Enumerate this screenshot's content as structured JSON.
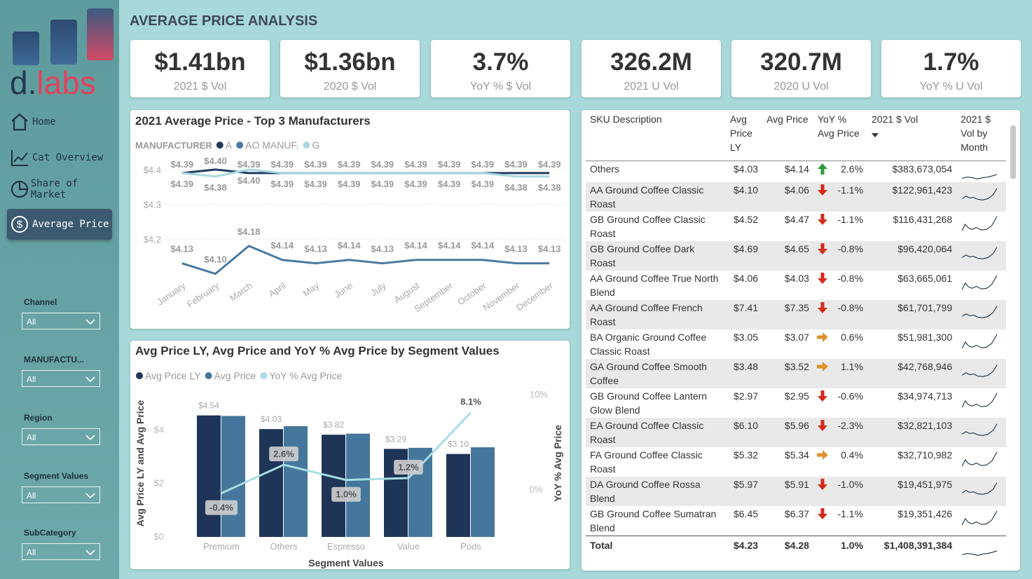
{
  "sidebar": {
    "logo": {
      "prefix": "d.",
      "suffix": "labs"
    },
    "nav": [
      "Home",
      "Cat Overview",
      "Share of Market",
      "Average Price"
    ],
    "active_nav": 3,
    "filters": [
      {
        "label": "Channel",
        "value": "All"
      },
      {
        "label": "MANUFACTU...",
        "value": "All"
      },
      {
        "label": "Region",
        "value": "All"
      },
      {
        "label": "Segment Values",
        "value": "All"
      },
      {
        "label": "SubCategory",
        "value": "All"
      }
    ]
  },
  "page_title": "AVERAGE PRICE ANALYSIS",
  "kpis": [
    {
      "value": "$1.41bn",
      "label": "2021 $ Vol"
    },
    {
      "value": "$1.36bn",
      "label": "2020 $ Vol"
    },
    {
      "value": "3.7%",
      "label": "YoY % $ Vol"
    },
    {
      "value": "326.2M",
      "label": "2021 U Vol"
    },
    {
      "value": "320.7M",
      "label": "2020 U Vol"
    },
    {
      "value": "1.7%",
      "label": "YoY % U Vol"
    }
  ],
  "chart_data": [
    {
      "type": "line",
      "title": "2021 Average Price - Top 3 Manufacturers",
      "legend_title": "MANUFACTURER",
      "categories": [
        "January",
        "February",
        "March",
        "April",
        "May",
        "June",
        "July",
        "August",
        "September",
        "October",
        "November",
        "December"
      ],
      "series": [
        {
          "name": "A",
          "color": "#1f3a5f",
          "label_offset": -8,
          "values": [
            4.39,
            4.4,
            4.39,
            4.39,
            4.39,
            4.39,
            4.39,
            4.39,
            4.39,
            4.39,
            4.39,
            4.39
          ],
          "value_labels": [
            "$4.39",
            "$4.40",
            "$4.39",
            "$4.39",
            "$4.39",
            "$4.39",
            "$4.39",
            "$4.39",
            "$4.39",
            "$4.39",
            "$4.39",
            "$4.39"
          ]
        },
        {
          "name": "AO MANUF.",
          "color": "#4a7aa0",
          "label_offset": -16,
          "values": [
            4.13,
            4.1,
            4.18,
            4.14,
            4.13,
            4.14,
            4.13,
            4.14,
            4.14,
            4.14,
            4.13,
            4.13
          ],
          "value_labels": [
            "$4.13",
            "$4.10",
            "$4.18",
            "$4.14",
            "$4.13",
            "$4.14",
            "$4.13",
            "$4.14",
            "$4.14",
            "$4.14",
            "$4.13",
            "$4.13"
          ]
        },
        {
          "name": "G",
          "color": "#a8d8e0",
          "label_offset": 20,
          "values": [
            4.39,
            4.38,
            4.4,
            4.39,
            4.39,
            4.39,
            4.39,
            4.39,
            4.39,
            4.39,
            4.38,
            4.38
          ],
          "value_labels": [
            "$4.39",
            "$4.38",
            "$4.40",
            "$4.39",
            "$4.39",
            "$4.39",
            "$4.39",
            "$4.39",
            "$4.39",
            "$4.39",
            "$4.38",
            "$4.38"
          ]
        }
      ],
      "ylim": [
        4.09,
        4.43
      ],
      "yticks": [
        {
          "value": 4.2,
          "label": "$4.2"
        },
        {
          "value": 4.3,
          "label": "$4.3"
        },
        {
          "value": 4.4,
          "label": "$4.4"
        }
      ],
      "grid": true
    },
    {
      "type": "combo",
      "title": "Avg Price LY, Avg Price and YoY % Avg Price by Segment Values",
      "categories": [
        "Premium",
        "Others",
        "Espresso",
        "Value",
        "Pods"
      ],
      "series": [
        {
          "name": "Avg Price LY",
          "kind": "bar",
          "color": "#1e3557",
          "values": [
            4.54,
            4.03,
            3.82,
            3.29,
            3.1
          ],
          "value_labels": [
            "$4.54",
            "$4.03",
            "$3.82",
            "$3.29",
            "$3.10"
          ]
        },
        {
          "name": "Avg Price",
          "kind": "bar",
          "color": "#44779b",
          "values": [
            4.52,
            4.14,
            3.86,
            3.33,
            3.35
          ]
        },
        {
          "name": "YoY % Avg Price",
          "kind": "line",
          "axis": "y2",
          "color": "#a8dde3",
          "values": [
            -0.4,
            2.6,
            1.0,
            1.2,
            8.1
          ],
          "value_labels": [
            "-0.4%",
            "2.6%",
            "1.0%",
            "1.2%",
            "8.1%"
          ]
        }
      ],
      "xlabel": "Segment Values",
      "ylabel": "Avg Price LY and Avg Price",
      "y2label": "YoY % Avg Price",
      "ylim": [
        0,
        5.5
      ],
      "yticks": [
        {
          "value": 0,
          "label": "$0"
        },
        {
          "value": 2,
          "label": "$2"
        },
        {
          "value": 4,
          "label": "$4"
        }
      ],
      "y2lim": [
        -5,
        10.5
      ],
      "y2ticks": [
        {
          "value": 0,
          "label": "0%"
        },
        {
          "value": 10,
          "label": "10%"
        }
      ]
    }
  ],
  "table": {
    "columns": [
      "SKU Description",
      "Avg Price LY",
      "Avg Price",
      "YoY % Avg Price",
      "2021 $ Vol",
      "2021 $ Vol by Month"
    ],
    "rows": [
      {
        "sku": "Others",
        "avg_price_ly": "$4.03",
        "avg_price": "$4.14",
        "trend": "up",
        "yoy": "2.6%",
        "vol": "$383,673,054"
      },
      {
        "sku": "AA Ground Coffee Classic Roast",
        "avg_price_ly": "$4.10",
        "avg_price": "$4.06",
        "trend": "down",
        "yoy": "-1.1%",
        "vol": "$122,961,423"
      },
      {
        "sku": "GB Ground Coffee Classic Roast",
        "avg_price_ly": "$4.52",
        "avg_price": "$4.47",
        "trend": "down",
        "yoy": "-1.1%",
        "vol": "$116,431,268"
      },
      {
        "sku": "GB Ground Coffee Dark Roast",
        "avg_price_ly": "$4.69",
        "avg_price": "$4.65",
        "trend": "down",
        "yoy": "-0.8%",
        "vol": "$96,420,064"
      },
      {
        "sku": "AA Ground Coffee True North Blend",
        "avg_price_ly": "$4.06",
        "avg_price": "$4.03",
        "trend": "down",
        "yoy": "-0.8%",
        "vol": "$63,665,061"
      },
      {
        "sku": "AA Ground Coffee French Roast",
        "avg_price_ly": "$7.41",
        "avg_price": "$7.35",
        "trend": "down",
        "yoy": "-0.8%",
        "vol": "$61,701,799"
      },
      {
        "sku": "BA Organic Ground Coffee Classic Roast",
        "avg_price_ly": "$3.05",
        "avg_price": "$3.07",
        "trend": "flat",
        "yoy": "0.6%",
        "vol": "$51,981,300"
      },
      {
        "sku": "GA Ground Coffee Smooth Coffee",
        "avg_price_ly": "$3.48",
        "avg_price": "$3.52",
        "trend": "flat",
        "yoy": "1.1%",
        "vol": "$42,768,946"
      },
      {
        "sku": "GB Ground Coffee Lantern Glow Blend",
        "avg_price_ly": "$2.97",
        "avg_price": "$2.95",
        "trend": "down",
        "yoy": "-0.6%",
        "vol": "$34,974,713"
      },
      {
        "sku": "EA Ground Coffee Classic Roast",
        "avg_price_ly": "$6.10",
        "avg_price": "$5.96",
        "trend": "down",
        "yoy": "-2.3%",
        "vol": "$32,821,103"
      },
      {
        "sku": "FA Ground Coffee Classic Roast",
        "avg_price_ly": "$5.32",
        "avg_price": "$5.34",
        "trend": "flat",
        "yoy": "0.4%",
        "vol": "$32,710,982"
      },
      {
        "sku": "DA Ground Coffee Rossa Blend",
        "avg_price_ly": "$5.97",
        "avg_price": "$5.91",
        "trend": "down",
        "yoy": "-1.0%",
        "vol": "$19,451,975"
      },
      {
        "sku": "GB Ground Coffee Sumatran Blend",
        "avg_price_ly": "$6.45",
        "avg_price": "$6.37",
        "trend": "down",
        "yoy": "-1.1%",
        "vol": "$19,351,426"
      }
    ],
    "total": {
      "sku": "Total",
      "avg_price_ly": "$4.23",
      "avg_price": "$4.28",
      "yoy": "1.0%",
      "vol": "$1,408,391,384"
    }
  }
}
